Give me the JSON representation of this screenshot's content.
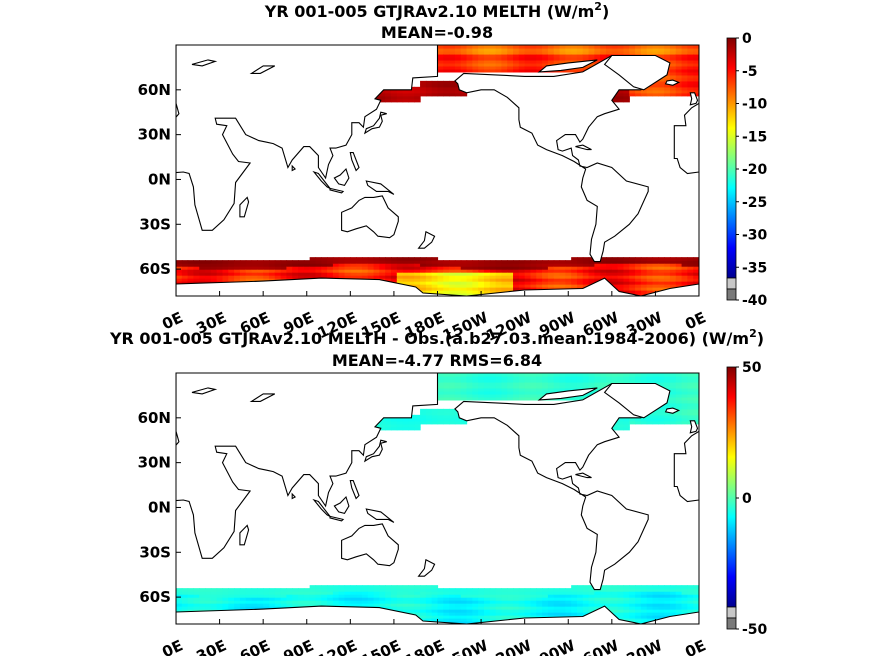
{
  "chart_data": [
    {
      "type": "heatmap",
      "title_main": "YR 001-005 GTJRAv2.10  MELTH (W/m",
      "title_sup": "2",
      "title_close": ")",
      "subtitle": "MEAN=-0.98",
      "x_ticks": [
        "0E",
        "30E",
        "60E",
        "90E",
        "120E",
        "150E",
        "180E",
        "150W",
        "120W",
        "90W",
        "60W",
        "30W",
        "0E"
      ],
      "y_ticks": [
        "60N",
        "30N",
        "0N",
        "30S",
        "60S"
      ],
      "y_tick_values": [
        60,
        30,
        0,
        -30,
        -60
      ],
      "xlim": [
        0,
        360
      ],
      "ylim": [
        -78,
        90
      ],
      "colorbar": {
        "min": -40,
        "max": 0,
        "ticks": [
          "0",
          "-5",
          "-10",
          "-15",
          "-20",
          "-25",
          "-30",
          "-35",
          "-40"
        ],
        "tick_values": [
          0,
          -5,
          -10,
          -15,
          -20,
          -25,
          -30,
          -35,
          -40
        ],
        "has_under_bins": true
      },
      "field": {
        "north_base": -7,
        "south_base": -6,
        "north_core": -2,
        "south_core": -1,
        "ocean_interior": 0
      }
    },
    {
      "type": "heatmap",
      "title_main": "YR 001-005 GTJRAv2.10 MELTH - Obs.(a.b27.03.mean.1984-2006) (W/m",
      "title_sup": "2",
      "title_close": ")",
      "subtitle": "MEAN=-4.77 RMS=6.84",
      "x_ticks": [
        "0E",
        "30E",
        "60E",
        "90E",
        "120E",
        "150E",
        "180E",
        "150W",
        "120W",
        "90W",
        "60W",
        "30W",
        "0E"
      ],
      "y_ticks": [
        "60N",
        "30N",
        "0N",
        "30S",
        "60S"
      ],
      "y_tick_values": [
        60,
        30,
        0,
        -30,
        -60
      ],
      "xlim": [
        0,
        360
      ],
      "ylim": [
        -78,
        90
      ],
      "colorbar": {
        "min": -50,
        "max": 50,
        "ticks": [
          "50",
          "0",
          "-50"
        ],
        "tick_values": [
          50,
          0,
          -50
        ],
        "has_under_bins": true
      },
      "field": {
        "north_base": -8,
        "south_base": -9,
        "north_core": -10,
        "south_core": -12,
        "ocean_interior": 0
      }
    }
  ],
  "colors": {
    "jet": [
      "#00008f",
      "#0000ff",
      "#0080ff",
      "#00ffff",
      "#80ff80",
      "#ffff00",
      "#ff8000",
      "#ff0000",
      "#800000"
    ],
    "under_bins": [
      "#7a7a7a",
      "#c8c8c8"
    ],
    "land": "#ffffff",
    "coast": "#000000"
  }
}
